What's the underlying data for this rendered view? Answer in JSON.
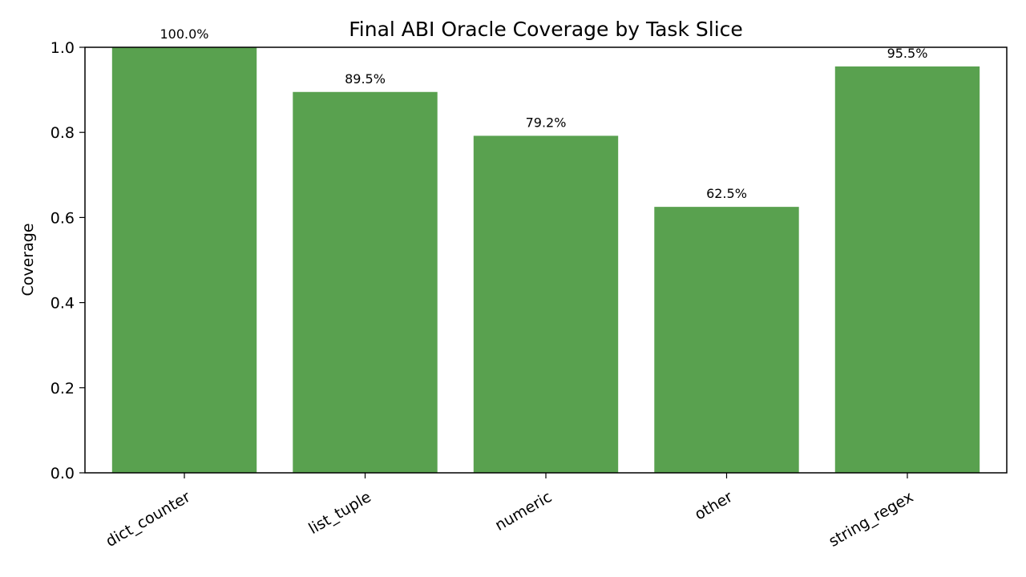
{
  "chart_data": {
    "type": "bar",
    "title": "Final ABI Oracle Coverage by Task Slice",
    "xlabel": "",
    "ylabel": "Coverage",
    "categories": [
      "dict_counter",
      "list_tuple",
      "numeric",
      "other",
      "string_regex"
    ],
    "values": [
      1.0,
      0.895,
      0.792,
      0.625,
      0.955
    ],
    "data_labels": [
      "100.0%",
      "89.5%",
      "79.2%",
      "62.5%",
      "95.5%"
    ],
    "ylim": [
      0,
      1.0
    ],
    "yticks": [
      0.0,
      0.2,
      0.4,
      0.6,
      0.8,
      1.0
    ],
    "ytick_labels": [
      "0.0",
      "0.2",
      "0.4",
      "0.6",
      "0.8",
      "1.0"
    ],
    "bar_color": "#59a14f",
    "grid": false,
    "legend": "none"
  }
}
